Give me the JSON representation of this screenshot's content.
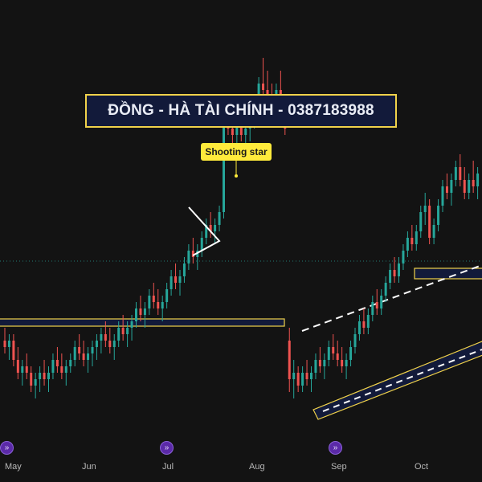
{
  "banner": {
    "text": "ĐỒNG - HÀ TÀI CHÍNH - 0387183988"
  },
  "annotation": {
    "text": "Shooting star"
  },
  "x_axis": {
    "labels": [
      "May",
      "Jun",
      "Jul",
      "Aug",
      "Sep",
      "Oct"
    ]
  },
  "event_icon": {
    "name": "dividends-fast-forward-icon",
    "count": 3
  },
  "colors": {
    "background": "#131313",
    "up": "#26a69a",
    "down": "#ef5350",
    "annotation_box": "#f0d24a",
    "band_fill": "#121a3a"
  },
  "chart_data": {
    "type": "candlestick",
    "title": "",
    "xlabel": "",
    "ylabel": "",
    "grid": false,
    "x_ticks": [
      "May",
      "Jun",
      "Jul",
      "Aug",
      "Sep",
      "Oct"
    ],
    "annotations": [
      "Shooting star",
      "symmetrical triangle",
      "horizontal resistance zone",
      "ascending channel",
      "dotted horizontal line"
    ],
    "series": [
      {
        "values": [
          [
            52,
            54,
            50,
            51
          ],
          [
            51,
            53,
            49,
            52
          ],
          [
            52,
            53,
            48,
            49
          ],
          [
            49,
            51,
            46,
            47
          ],
          [
            47,
            49,
            45,
            48
          ],
          [
            48,
            50,
            46,
            47
          ],
          [
            47,
            48,
            44,
            45
          ],
          [
            45,
            47,
            43,
            46
          ],
          [
            46,
            48,
            44,
            47
          ],
          [
            47,
            49,
            45,
            46
          ],
          [
            46,
            48,
            44,
            47
          ],
          [
            47,
            50,
            46,
            49
          ],
          [
            49,
            51,
            47,
            48
          ],
          [
            48,
            50,
            46,
            47
          ],
          [
            47,
            49,
            45,
            48
          ],
          [
            48,
            50,
            47,
            49
          ],
          [
            49,
            52,
            48,
            51
          ],
          [
            51,
            53,
            49,
            50
          ],
          [
            50,
            52,
            48,
            49
          ],
          [
            49,
            51,
            47,
            50
          ],
          [
            50,
            52,
            48,
            51
          ],
          [
            51,
            53,
            49,
            52
          ],
          [
            52,
            54,
            50,
            53
          ],
          [
            53,
            55,
            51,
            52
          ],
          [
            52,
            54,
            50,
            51
          ],
          [
            51,
            53,
            49,
            52
          ],
          [
            52,
            55,
            51,
            54
          ],
          [
            54,
            56,
            52,
            53
          ],
          [
            53,
            55,
            51,
            54
          ],
          [
            54,
            56,
            52,
            55
          ],
          [
            55,
            58,
            54,
            57
          ],
          [
            57,
            59,
            55,
            56
          ],
          [
            56,
            58,
            54,
            57
          ],
          [
            57,
            60,
            56,
            59
          ],
          [
            59,
            61,
            57,
            58
          ],
          [
            58,
            60,
            56,
            57
          ],
          [
            57,
            59,
            55,
            58
          ],
          [
            58,
            61,
            57,
            60
          ],
          [
            60,
            63,
            59,
            62
          ],
          [
            62,
            64,
            60,
            61
          ],
          [
            61,
            63,
            59,
            62
          ],
          [
            62,
            65,
            61,
            64
          ],
          [
            64,
            67,
            63,
            66
          ],
          [
            66,
            68,
            64,
            65
          ],
          [
            65,
            67,
            63,
            66
          ],
          [
            66,
            69,
            65,
            68
          ],
          [
            68,
            71,
            67,
            70
          ],
          [
            70,
            72,
            68,
            69
          ],
          [
            69,
            71,
            67,
            70
          ],
          [
            70,
            73,
            69,
            72
          ],
          [
            72,
            88,
            71,
            86
          ],
          [
            86,
            90,
            84,
            85
          ],
          [
            85,
            88,
            82,
            84
          ],
          [
            84,
            87,
            81,
            86
          ],
          [
            86,
            88,
            83,
            84
          ],
          [
            84,
            87,
            82,
            85
          ],
          [
            85,
            88,
            83,
            86
          ],
          [
            86,
            90,
            85,
            89
          ],
          [
            89,
            93,
            88,
            92
          ],
          [
            92,
            96,
            90,
            91
          ],
          [
            91,
            94,
            89,
            90
          ],
          [
            90,
            92,
            87,
            88
          ],
          [
            88,
            92,
            87,
            91
          ],
          [
            91,
            94,
            89,
            88
          ],
          [
            88,
            90,
            84,
            85
          ],
          [
            52,
            54,
            44,
            46
          ],
          [
            46,
            49,
            43,
            47
          ],
          [
            47,
            48,
            44,
            45
          ],
          [
            45,
            48,
            44,
            47
          ],
          [
            47,
            49,
            45,
            46
          ],
          [
            46,
            48,
            44,
            47
          ],
          [
            47,
            50,
            46,
            49
          ],
          [
            49,
            51,
            47,
            48
          ],
          [
            48,
            50,
            46,
            49
          ],
          [
            49,
            52,
            48,
            51
          ],
          [
            51,
            53,
            49,
            50
          ],
          [
            50,
            52,
            48,
            49
          ],
          [
            49,
            51,
            47,
            48
          ],
          [
            48,
            50,
            46,
            49
          ],
          [
            49,
            52,
            48,
            51
          ],
          [
            51,
            54,
            50,
            53
          ],
          [
            53,
            56,
            52,
            55
          ],
          [
            55,
            57,
            53,
            54
          ],
          [
            54,
            57,
            53,
            56
          ],
          [
            56,
            59,
            55,
            58
          ],
          [
            58,
            60,
            56,
            57
          ],
          [
            57,
            60,
            56,
            59
          ],
          [
            59,
            62,
            58,
            61
          ],
          [
            61,
            64,
            60,
            63
          ],
          [
            63,
            65,
            61,
            62
          ],
          [
            62,
            65,
            61,
            64
          ],
          [
            64,
            67,
            63,
            66
          ],
          [
            66,
            69,
            65,
            68
          ],
          [
            68,
            70,
            66,
            67
          ],
          [
            67,
            70,
            66,
            69
          ],
          [
            69,
            73,
            68,
            72
          ],
          [
            72,
            75,
            70,
            73
          ],
          [
            73,
            74,
            67,
            68
          ],
          [
            68,
            71,
            67,
            70
          ],
          [
            70,
            74,
            69,
            73
          ],
          [
            73,
            77,
            72,
            76
          ],
          [
            76,
            78,
            74,
            75
          ],
          [
            75,
            78,
            73,
            77
          ],
          [
            77,
            80,
            76,
            79
          ],
          [
            79,
            81,
            76,
            77
          ],
          [
            77,
            79,
            74,
            75
          ],
          [
            75,
            78,
            74,
            77
          ],
          [
            77,
            80,
            75,
            76
          ],
          [
            76,
            79,
            74,
            78
          ]
        ]
      }
    ]
  }
}
